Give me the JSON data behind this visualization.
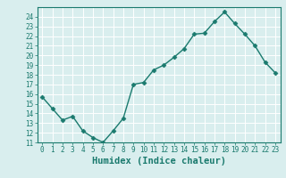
{
  "x": [
    0,
    1,
    2,
    3,
    4,
    5,
    6,
    7,
    8,
    9,
    10,
    11,
    12,
    13,
    14,
    15,
    16,
    17,
    18,
    19,
    20,
    21,
    22,
    23
  ],
  "y": [
    15.7,
    14.5,
    13.3,
    13.7,
    12.2,
    11.5,
    11.0,
    12.2,
    13.5,
    17.0,
    17.2,
    18.5,
    19.0,
    19.8,
    20.7,
    22.2,
    22.3,
    23.5,
    24.5,
    23.3,
    22.2,
    21.0,
    19.3,
    18.2
  ],
  "line_color": "#1a7a6e",
  "marker": "D",
  "marker_size": 2.5,
  "bg_color": "#d9eeee",
  "grid_color": "#ffffff",
  "xlabel": "Humidex (Indice chaleur)",
  "ylim": [
    11,
    25
  ],
  "xlim": [
    -0.5,
    23.5
  ],
  "yticks": [
    11,
    12,
    13,
    14,
    15,
    16,
    17,
    18,
    19,
    20,
    21,
    22,
    23,
    24
  ],
  "xticks": [
    0,
    1,
    2,
    3,
    4,
    5,
    6,
    7,
    8,
    9,
    10,
    11,
    12,
    13,
    14,
    15,
    16,
    17,
    18,
    19,
    20,
    21,
    22,
    23
  ],
  "tick_label_fontsize": 5.5,
  "xlabel_fontsize": 7.5,
  "linewidth": 1.0
}
